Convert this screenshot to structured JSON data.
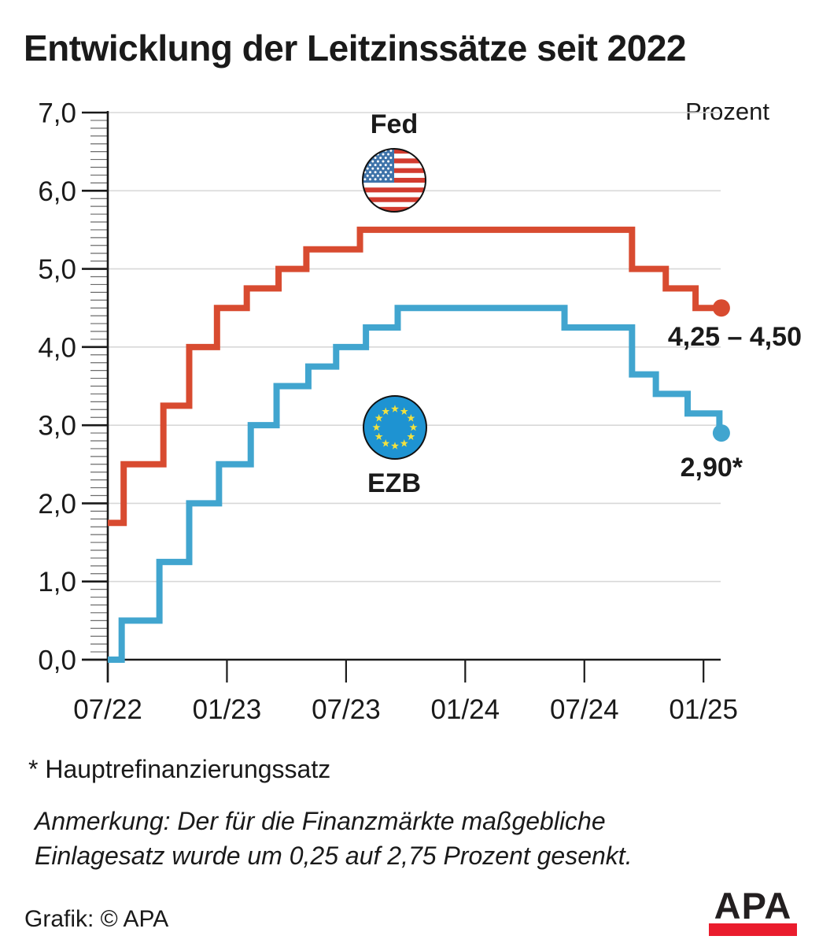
{
  "chart_data": {
    "type": "line",
    "subtype": "step",
    "title": "Entwicklung der Leitzinssätze seit 2022",
    "unit_label": "Prozent",
    "x_unit": "months since 07/2022",
    "x_tick_labels": [
      "07/22",
      "01/23",
      "07/23",
      "01/24",
      "07/24",
      "01/25"
    ],
    "x_tick_months": [
      0,
      6,
      12,
      18,
      24,
      30
    ],
    "y_tick_labels": [
      "0,0",
      "1,0",
      "2,0",
      "3,0",
      "4,0",
      "5,0",
      "6,0",
      "7,0"
    ],
    "ylim": [
      0,
      7
    ],
    "y_minor_tick": 0.1,
    "grid": "horizontal",
    "series": [
      {
        "name": "Fed",
        "flag": "US",
        "end_label": "4,25 – 4,50",
        "end_month": 30.9,
        "end_value": 4.5,
        "steps_m_v": [
          [
            0,
            1.75
          ],
          [
            0.8,
            2.5
          ],
          [
            2.8,
            3.25
          ],
          [
            4.1,
            4.0
          ],
          [
            5.5,
            4.5
          ],
          [
            7.0,
            4.75
          ],
          [
            8.6,
            5.0
          ],
          [
            10.0,
            5.25
          ],
          [
            12.7,
            5.5
          ],
          [
            26.4,
            5.0
          ],
          [
            28.1,
            4.75
          ],
          [
            29.6,
            4.5
          ]
        ]
      },
      {
        "name": "EZB",
        "flag": "EU",
        "end_label": "2,90*",
        "end_month": 30.9,
        "end_value": 2.9,
        "steps_m_v": [
          [
            0,
            0.0
          ],
          [
            0.7,
            0.5
          ],
          [
            2.6,
            1.25
          ],
          [
            4.1,
            2.0
          ],
          [
            5.6,
            2.5
          ],
          [
            7.2,
            3.0
          ],
          [
            8.5,
            3.5
          ],
          [
            10.1,
            3.75
          ],
          [
            11.5,
            4.0
          ],
          [
            13.0,
            4.25
          ],
          [
            14.6,
            4.5
          ],
          [
            23.0,
            4.25
          ],
          [
            26.4,
            3.65
          ],
          [
            27.6,
            3.4
          ],
          [
            29.2,
            3.15
          ],
          [
            30.8,
            2.9
          ]
        ]
      }
    ]
  },
  "colors": {
    "fed_line": "#d84b30",
    "ezb_line": "#41a5cf",
    "grid": "#d8d8d8",
    "axis": "#1a1a1a",
    "minor_tick": "#6b6b6b",
    "us_flag_canton": "#3e73a9",
    "us_flag_stripe": "#d23b2f",
    "eu_flag_blue": "#1e93d2",
    "eu_flag_star": "#f2e13e",
    "apa_red": "#ea1c2d"
  },
  "footer": {
    "footnote": "* Hauptrefinanzierungssatz",
    "note_lines": [
      "Anmerkung: Der für die Finanzmärkte maßgebliche",
      "Einlagesatz wurde um 0,25 auf 2,75 Prozent gesenkt."
    ],
    "credit": "Grafik: © APA",
    "logo_text": "APA"
  }
}
